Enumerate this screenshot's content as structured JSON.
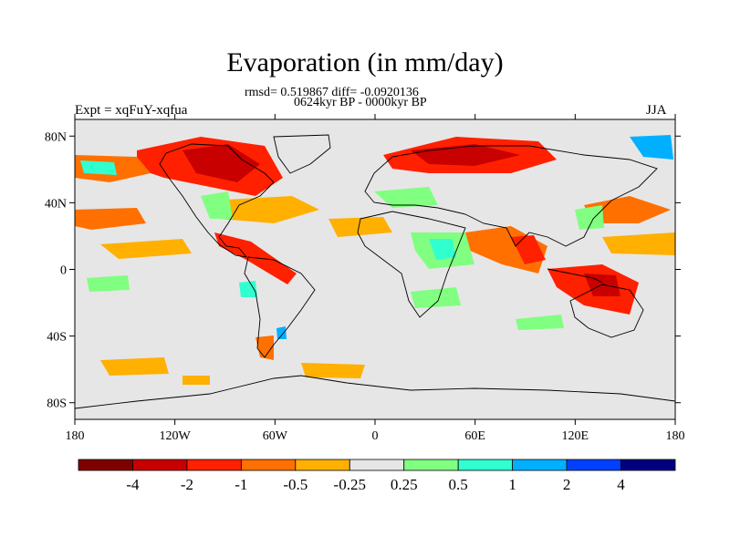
{
  "figure": {
    "title": "Evaporation (in mm/day)",
    "stats_line": "rmsd= 0.519867 diff= -0.0920136",
    "period_line": "0624kyr BP - 0000kyr BP",
    "left_label": "Expt = xqFuY-xqfua",
    "right_label": "JJA"
  },
  "map": {
    "projection": "cylindrical-equidistant",
    "lon_range": [
      -180,
      180
    ],
    "lat_range": [
      -90,
      90
    ],
    "background_color": "#e6e6e6",
    "coastline_color": "#000000",
    "lat_ticks": [
      {
        "value": 80,
        "label": "80N"
      },
      {
        "value": 40,
        "label": "40N"
      },
      {
        "value": 0,
        "label": "0"
      },
      {
        "value": -40,
        "label": "40S"
      },
      {
        "value": -80,
        "label": "80S"
      }
    ],
    "lon_ticks": [
      {
        "value": -180,
        "label": "180"
      },
      {
        "value": -120,
        "label": "120W"
      },
      {
        "value": -60,
        "label": "60W"
      },
      {
        "value": 0,
        "label": "0"
      },
      {
        "value": 60,
        "label": "60E"
      },
      {
        "value": 120,
        "label": "120E"
      },
      {
        "value": 180,
        "label": "180"
      }
    ]
  },
  "colorbar": {
    "colors": [
      "#800000",
      "#c80000",
      "#ff2000",
      "#ff7000",
      "#ffb000",
      "#e6e6e6",
      "#80ff80",
      "#30ffd0",
      "#00b0ff",
      "#0040ff",
      "#000080"
    ],
    "labels": [
      "-4",
      "-2",
      "-1",
      "-0.5",
      "-0.25",
      "0.25",
      "0.5",
      "1",
      "2",
      "4"
    ]
  }
}
